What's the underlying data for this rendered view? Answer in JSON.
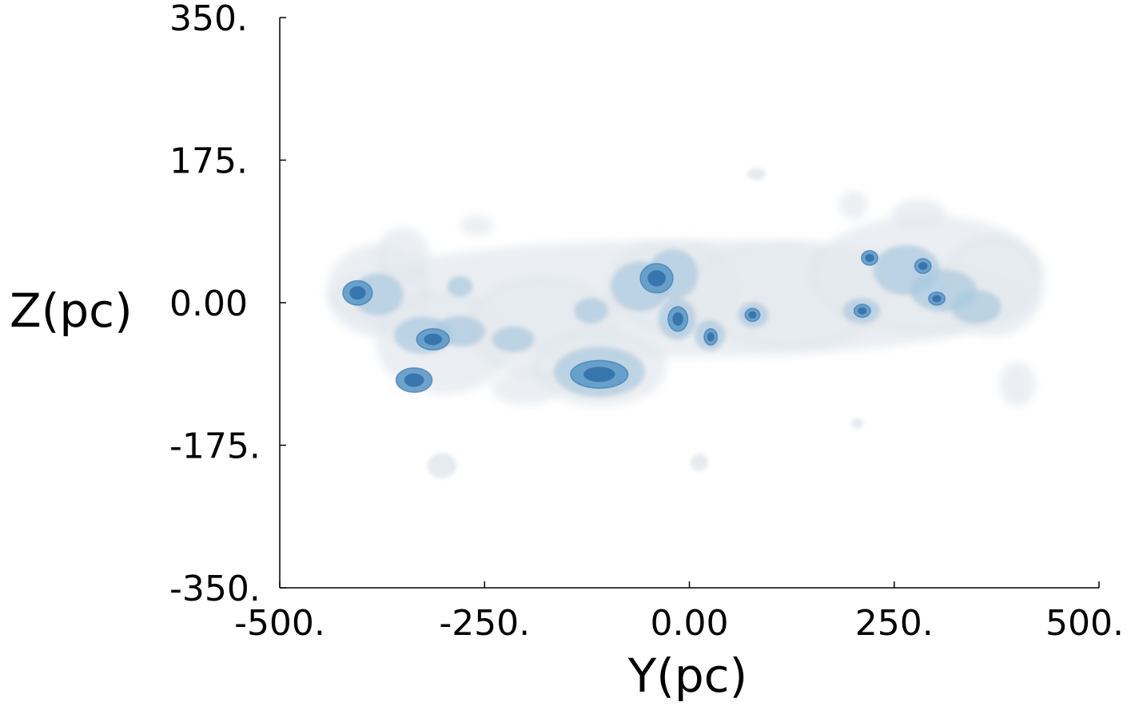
{
  "chart_data": {
    "type": "heatmap",
    "title": "",
    "xlabel": "Y(pc)",
    "ylabel": "Z(pc)",
    "xlim": [
      -500,
      500
    ],
    "ylim": [
      -350,
      350
    ],
    "x_ticks": [
      {
        "value": -500,
        "label": "-500."
      },
      {
        "value": -250,
        "label": "-250."
      },
      {
        "value": 0,
        "label": "0.00"
      },
      {
        "value": 250,
        "label": "250."
      },
      {
        "value": 500,
        "label": "500."
      }
    ],
    "y_ticks": [
      {
        "value": 350,
        "label": "350."
      },
      {
        "value": 175,
        "label": "175."
      },
      {
        "value": 0,
        "label": "0.00"
      },
      {
        "value": -175,
        "label": "-175."
      },
      {
        "value": -350,
        "label": "-350."
      }
    ],
    "grid": false,
    "colors": {
      "envelope": "#e4eaef",
      "envelope_edge": "#b9c6d0",
      "medium": "#a9c9df",
      "dense": "#5d9ac8",
      "core": "#2f6fa8"
    },
    "layers": [
      {
        "name": "envelope",
        "blobs": [
          {
            "y": -10,
            "z": 5,
            "ry": 430,
            "rz": 70
          },
          {
            "y": -380,
            "z": 15,
            "ry": 60,
            "rz": 55
          },
          {
            "y": -300,
            "z": -50,
            "ry": 80,
            "rz": 60
          },
          {
            "y": -180,
            "z": -30,
            "ry": 90,
            "rz": 60
          },
          {
            "y": -110,
            "z": -80,
            "ry": 80,
            "rz": 45
          },
          {
            "y": -20,
            "z": 20,
            "ry": 80,
            "rz": 55
          },
          {
            "y": 120,
            "z": 10,
            "ry": 120,
            "rz": 65
          },
          {
            "y": 290,
            "z": 35,
            "ry": 140,
            "rz": 70
          },
          {
            "y": 370,
            "z": 20,
            "ry": 60,
            "rz": 60
          },
          {
            "y": -350,
            "z": 60,
            "ry": 30,
            "rz": 30
          },
          {
            "y": -260,
            "z": 95,
            "ry": 18,
            "rz": 10
          },
          {
            "y": -200,
            "z": -105,
            "ry": 40,
            "rz": 18
          },
          {
            "y": 400,
            "z": -100,
            "ry": 20,
            "rz": 25
          },
          {
            "y": 280,
            "z": 110,
            "ry": 30,
            "rz": 15
          },
          {
            "y": 200,
            "z": 120,
            "ry": 15,
            "rz": 15
          }
        ]
      },
      {
        "name": "isolated",
        "blobs": [
          {
            "y": -302,
            "z": -200,
            "ry": 16,
            "rz": 14
          },
          {
            "y": 12,
            "z": -196,
            "ry": 9,
            "rz": 9
          },
          {
            "y": 82,
            "z": 158,
            "ry": 10,
            "rz": 6
          },
          {
            "y": 205,
            "z": -148,
            "ry": 6,
            "rz": 5
          }
        ]
      },
      {
        "name": "medium",
        "blobs": [
          {
            "y": -380,
            "z": 10,
            "ry": 30,
            "rz": 25
          },
          {
            "y": -325,
            "z": -40,
            "ry": 35,
            "rz": 22
          },
          {
            "y": -280,
            "z": -35,
            "ry": 30,
            "rz": 18
          },
          {
            "y": -215,
            "z": -45,
            "ry": 25,
            "rz": 15
          },
          {
            "y": -110,
            "z": -85,
            "ry": 55,
            "rz": 30
          },
          {
            "y": -60,
            "z": 20,
            "ry": 35,
            "rz": 30
          },
          {
            "y": -20,
            "z": 35,
            "ry": 30,
            "rz": 30
          },
          {
            "y": -15,
            "z": -20,
            "ry": 22,
            "rz": 25
          },
          {
            "y": 25,
            "z": -40,
            "ry": 18,
            "rz": 18
          },
          {
            "y": 78,
            "z": -15,
            "ry": 18,
            "rz": 15
          },
          {
            "y": 210,
            "z": -10,
            "ry": 22,
            "rz": 15
          },
          {
            "y": 265,
            "z": 40,
            "ry": 40,
            "rz": 30
          },
          {
            "y": 310,
            "z": 15,
            "ry": 40,
            "rz": 25
          },
          {
            "y": 350,
            "z": -5,
            "ry": 30,
            "rz": 20
          },
          {
            "y": -120,
            "z": -10,
            "ry": 20,
            "rz": 15
          },
          {
            "y": -280,
            "z": 20,
            "ry": 15,
            "rz": 12
          }
        ]
      },
      {
        "name": "dense",
        "blobs": [
          {
            "y": -405,
            "z": 12,
            "ry": 18,
            "rz": 15
          },
          {
            "y": -336,
            "z": -95,
            "ry": 22,
            "rz": 15
          },
          {
            "y": -313,
            "z": -45,
            "ry": 20,
            "rz": 13
          },
          {
            "y": -110,
            "z": -88,
            "ry": 35,
            "rz": 17
          },
          {
            "y": -40,
            "z": 30,
            "ry": 20,
            "rz": 18
          },
          {
            "y": -14,
            "z": -20,
            "ry": 12,
            "rz": 15
          },
          {
            "y": 26,
            "z": -42,
            "ry": 8,
            "rz": 10
          },
          {
            "y": 77,
            "z": -15,
            "ry": 9,
            "rz": 8
          },
          {
            "y": 211,
            "z": -10,
            "ry": 10,
            "rz": 8
          },
          {
            "y": 302,
            "z": 5,
            "ry": 10,
            "rz": 8
          },
          {
            "y": 220,
            "z": 55,
            "ry": 10,
            "rz": 9
          },
          {
            "y": 285,
            "z": 45,
            "ry": 10,
            "rz": 9
          }
        ]
      }
    ]
  }
}
